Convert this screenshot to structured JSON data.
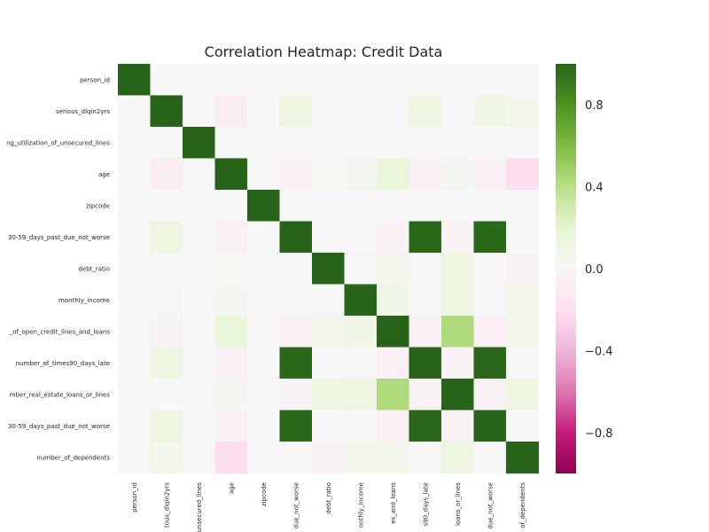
{
  "chart_data": {
    "type": "heatmap",
    "title": "Correlation Heatmap: Credit Data",
    "colormap": "PiYG",
    "vmin": -1.0,
    "vmax": 1.0,
    "colorbar_ticks": [
      0.8,
      0.4,
      0.0,
      -0.4,
      -0.8
    ],
    "colorbar_tick_labels": [
      "0.8",
      "0.4",
      "0.0",
      "−0.4",
      "−0.8"
    ],
    "y_tick_labels": [
      "person_id",
      "serious_dlqin2yrs",
      "ng_utilization_of_unsecured_lines",
      "age",
      "zipcode",
      "30-59_days_past_due_not_worse",
      "debt_ratio",
      "monthly_income",
      "_of_open_credit_lines_and_loans",
      "number_of_times90_days_late",
      "mber_real_estate_loans_or_lines",
      "30-59_days_past_due_not_worse",
      "number_of_dependents"
    ],
    "x_tick_labels": [
      "person_id",
      "tous_dlqin2yrs",
      "unsecured_lines",
      "age",
      "zipcode",
      "due_not_worse",
      "debt_ratio",
      "onthly_income",
      "es_and_loans",
      "s90_days_late",
      "loans_or_lines",
      "due_not_worse",
      "of_dependents"
    ],
    "matrix": [
      [
        1.0,
        0.0,
        0.0,
        0.0,
        0.0,
        0.0,
        0.0,
        0.0,
        0.0,
        0.0,
        0.0,
        0.0,
        0.0
      ],
      [
        0.0,
        1.0,
        0.0,
        -0.1,
        0.0,
        0.12,
        0.0,
        -0.01,
        -0.02,
        0.11,
        0.0,
        0.1,
        0.05
      ],
      [
        0.0,
        0.0,
        1.0,
        0.0,
        0.0,
        0.0,
        0.0,
        0.0,
        0.0,
        0.0,
        0.0,
        0.0,
        0.0
      ],
      [
        0.0,
        -0.1,
        0.0,
        1.0,
        0.0,
        -0.06,
        0.02,
        0.03,
        0.15,
        -0.06,
        0.03,
        -0.06,
        -0.21
      ],
      [
        0.0,
        0.0,
        0.0,
        0.0,
        1.0,
        0.0,
        0.0,
        0.0,
        0.0,
        0.0,
        0.0,
        0.0,
        0.0
      ],
      [
        0.0,
        0.12,
        0.0,
        -0.06,
        0.0,
        1.0,
        0.0,
        0.0,
        -0.05,
        0.98,
        -0.03,
        0.98,
        0.0
      ],
      [
        0.0,
        0.0,
        0.0,
        0.02,
        0.0,
        0.0,
        1.0,
        -0.02,
        0.05,
        0.0,
        0.12,
        0.0,
        -0.04
      ],
      [
        0.0,
        -0.01,
        0.0,
        0.03,
        0.0,
        -0.01,
        -0.02,
        1.0,
        0.09,
        -0.01,
        0.12,
        -0.01,
        0.06
      ],
      [
        0.0,
        -0.03,
        0.0,
        0.15,
        0.0,
        -0.06,
        0.05,
        0.09,
        1.0,
        -0.07,
        0.43,
        -0.07,
        0.06
      ],
      [
        0.0,
        0.12,
        0.0,
        -0.06,
        0.0,
        0.98,
        0.0,
        -0.01,
        -0.07,
        1.0,
        -0.04,
        0.99,
        0.0
      ],
      [
        0.0,
        0.0,
        0.0,
        0.03,
        0.0,
        -0.03,
        0.12,
        0.12,
        0.43,
        -0.04,
        1.0,
        -0.04,
        0.12
      ],
      [
        0.0,
        0.12,
        0.0,
        -0.06,
        0.0,
        0.98,
        0.0,
        -0.01,
        -0.07,
        0.99,
        -0.04,
        1.0,
        0.0
      ],
      [
        0.0,
        0.05,
        0.0,
        -0.21,
        0.0,
        0.0,
        -0.04,
        0.06,
        0.06,
        0.0,
        0.12,
        0.0,
        1.0
      ]
    ]
  }
}
